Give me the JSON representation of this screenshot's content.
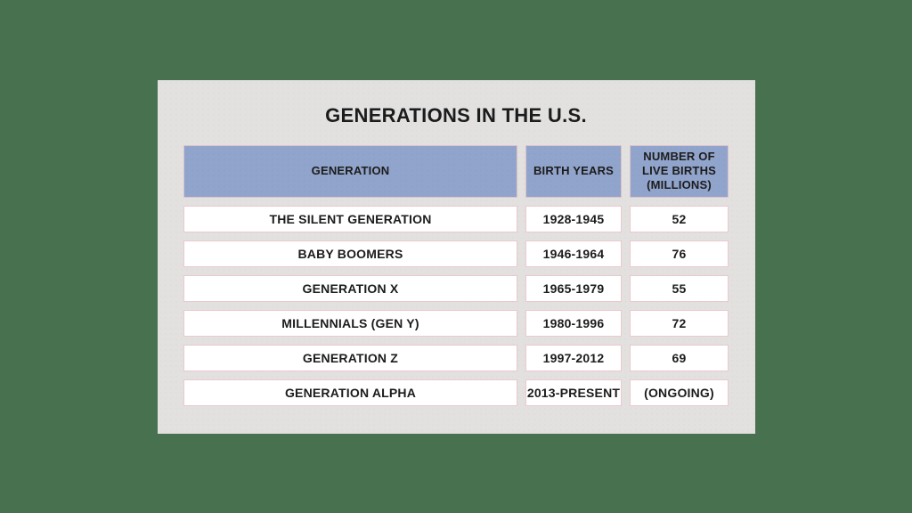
{
  "chart_data": {
    "type": "table",
    "title": "GENERATIONS IN THE U.S.",
    "columns": [
      "GENERATION",
      "BIRTH YEARS",
      "NUMBER OF LIVE BIRTHS (MILLIONS)"
    ],
    "rows": [
      [
        "THE SILENT GENERATION",
        "1928-1945",
        "52"
      ],
      [
        "BABY BOOMERS",
        "1946-1964",
        "76"
      ],
      [
        "GENERATION X",
        "1965-1979",
        "55"
      ],
      [
        "MILLENNIALS (GEN Y)",
        "1980-1996",
        "72"
      ],
      [
        "GENERATION Z",
        "1997-2012",
        "69"
      ],
      [
        "GENERATION ALPHA",
        "2013-PRESENT",
        "(ONGOING)"
      ]
    ],
    "layout_hints": {
      "header_position": "top",
      "grid": "off",
      "note": "births column is live births in millions; last row ongoing"
    }
  },
  "colors": {
    "page_background": "#48714f",
    "panel_background": "#e2e1e0",
    "header_fill": "#91a4cb",
    "cell_fill": "#ffffff",
    "cell_border": "#ecc8ce",
    "text": "#1c1c1c"
  }
}
